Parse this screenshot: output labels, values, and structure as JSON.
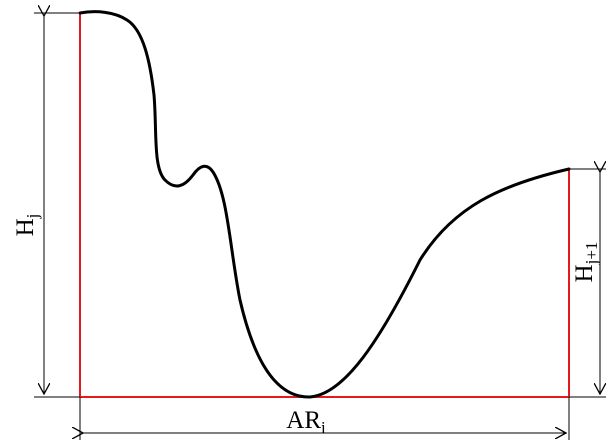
{
  "colors": {
    "profile": "#000000",
    "boundary": "#e41a1c",
    "dimension": "#000000",
    "background": "#ffffff"
  },
  "labels": {
    "hj_main": "H",
    "hj_sub": "j",
    "hj1_main": "H",
    "hj1_sub": "j+1",
    "ar_main": "AR",
    "ar_sub": "i"
  }
}
